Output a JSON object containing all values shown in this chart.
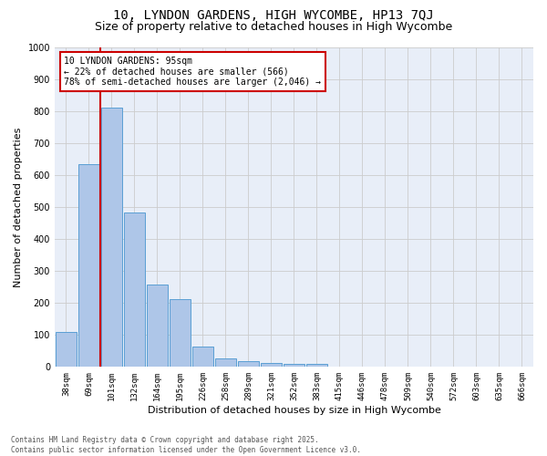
{
  "title_line1": "10, LYNDON GARDENS, HIGH WYCOMBE, HP13 7QJ",
  "title_line2": "Size of property relative to detached houses in High Wycombe",
  "xlabel": "Distribution of detached houses by size in High Wycombe",
  "ylabel": "Number of detached properties",
  "categories": [
    "38sqm",
    "69sqm",
    "101sqm",
    "132sqm",
    "164sqm",
    "195sqm",
    "226sqm",
    "258sqm",
    "289sqm",
    "321sqm",
    "352sqm",
    "383sqm",
    "415sqm",
    "446sqm",
    "478sqm",
    "509sqm",
    "540sqm",
    "572sqm",
    "603sqm",
    "635sqm",
    "666sqm"
  ],
  "values": [
    110,
    635,
    810,
    483,
    257,
    211,
    63,
    27,
    17,
    12,
    10,
    9,
    0,
    0,
    0,
    0,
    0,
    0,
    0,
    0,
    0
  ],
  "bar_color": "#aec6e8",
  "bar_edge_color": "#5a9fd4",
  "vline_color": "#cc0000",
  "annotation_text": "10 LYNDON GARDENS: 95sqm\n← 22% of detached houses are smaller (566)\n78% of semi-detached houses are larger (2,046) →",
  "annotation_box_color": "#cc0000",
  "ylim": [
    0,
    1000
  ],
  "yticks": [
    0,
    100,
    200,
    300,
    400,
    500,
    600,
    700,
    800,
    900,
    1000
  ],
  "grid_color": "#cccccc",
  "background_color": "#e8eef8",
  "footer_text": "Contains HM Land Registry data © Crown copyright and database right 2025.\nContains public sector information licensed under the Open Government Licence v3.0.",
  "title_fontsize": 10,
  "subtitle_fontsize": 9,
  "tick_fontsize": 6.5,
  "label_fontsize": 8
}
